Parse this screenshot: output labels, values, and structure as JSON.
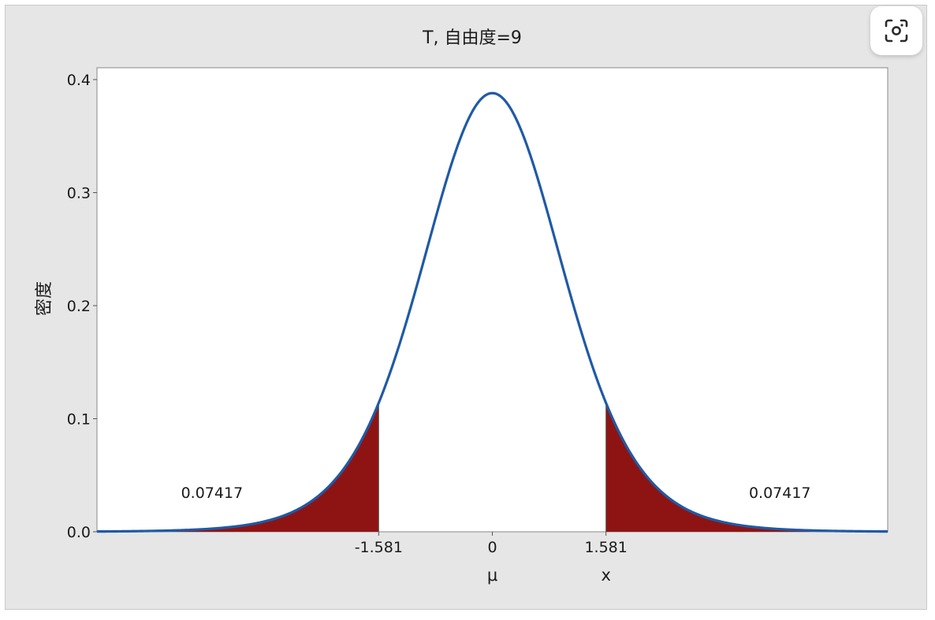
{
  "chart_data": {
    "type": "area",
    "title": "T, 自由度=9",
    "distribution": "t",
    "df": 9,
    "xlabel": "",
    "ylabel": "密度",
    "xlim": [
      -5.5,
      5.5
    ],
    "ylim": [
      0,
      0.4
    ],
    "yticks": [
      {
        "value": 0.0,
        "label": "0.0"
      },
      {
        "value": 0.1,
        "label": "0.1"
      },
      {
        "value": 0.2,
        "label": "0.2"
      },
      {
        "value": 0.3,
        "label": "0.3"
      },
      {
        "value": 0.4,
        "label": "0.4"
      }
    ],
    "xticks": [
      {
        "value": -1.581,
        "label": "-1.581"
      },
      {
        "value": 0,
        "label": "0"
      },
      {
        "value": 1.581,
        "label": "1.581"
      }
    ],
    "xsublabels": [
      {
        "value": 0,
        "label": "μ"
      },
      {
        "value": 1.581,
        "label": "x"
      }
    ],
    "shaded_regions": [
      {
        "from": -5.5,
        "to": -1.581,
        "area_label": "0.07417",
        "label_x": -3.9,
        "label_y": 0.035
      },
      {
        "from": 1.581,
        "to": 5.5,
        "area_label": "0.07417",
        "label_x": 4.0,
        "label_y": 0.035
      }
    ],
    "grid": false,
    "line_color": "#1f5aa6",
    "fill_color": "#8e1414"
  },
  "toolbar": {
    "lens_icon": "visual-search-icon"
  }
}
